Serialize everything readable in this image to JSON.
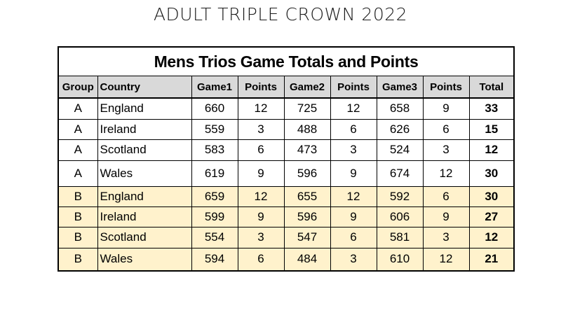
{
  "page": {
    "title": "ADULT TRIPLE CROWN 2022"
  },
  "table": {
    "caption": "Mens Trios Game Totals and Points",
    "headers": [
      "Group",
      "Country",
      "Game1",
      "Points",
      "Game2",
      "Points",
      "Game3",
      "Points",
      "Total"
    ],
    "rows": [
      {
        "group": "A",
        "country": "England",
        "game1": "660",
        "points1": "12",
        "game2": "725",
        "points2": "12",
        "game3": "658",
        "points3": "9",
        "total": "33"
      },
      {
        "group": "A",
        "country": "Ireland",
        "game1": "559",
        "points1": "3",
        "game2": "488",
        "points2": "6",
        "game3": "626",
        "points3": "6",
        "total": "15"
      },
      {
        "group": "A",
        "country": "Scotland",
        "game1": "583",
        "points1": "6",
        "game2": "473",
        "points2": "3",
        "game3": "524",
        "points3": "3",
        "total": "12"
      },
      {
        "group": "A",
        "country": "Wales",
        "game1": "619",
        "points1": "9",
        "game2": "596",
        "points2": "9",
        "game3": "674",
        "points3": "12",
        "total": "30"
      },
      {
        "group": "B",
        "country": "England",
        "game1": "659",
        "points1": "12",
        "game2": "655",
        "points2": "12",
        "game3": "592",
        "points3": "6",
        "total": "30"
      },
      {
        "group": "B",
        "country": "Ireland",
        "game1": "599",
        "points1": "9",
        "game2": "596",
        "points2": "9",
        "game3": "606",
        "points3": "9",
        "total": "27"
      },
      {
        "group": "B",
        "country": "Scotland",
        "game1": "554",
        "points1": "3",
        "game2": "547",
        "points2": "6",
        "game3": "581",
        "points3": "3",
        "total": "12"
      },
      {
        "group": "B",
        "country": "Wales",
        "game1": "594",
        "points1": "6",
        "game2": "484",
        "points2": "3",
        "game3": "610",
        "points3": "12",
        "total": "21"
      }
    ]
  },
  "colors": {
    "header_fill": "#d9d9d9",
    "group_b_fill": "#fff2cc",
    "group_a_fill": "#ffffff"
  }
}
